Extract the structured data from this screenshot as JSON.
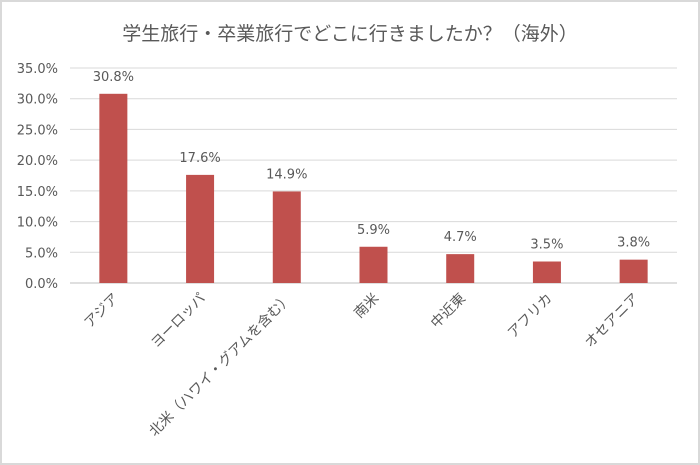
{
  "chart_data": {
    "type": "bar",
    "title": "学生旅行・卒業旅行でどこに行きましたか？（海外）",
    "categories": [
      "アジア",
      "ヨーロッパ",
      "北米（ハワイ・グアムを含む）",
      "南米",
      "中近東",
      "アフリカ",
      "オセアニア"
    ],
    "values": [
      30.8,
      17.6,
      14.9,
      5.9,
      4.7,
      3.5,
      3.8
    ],
    "data_labels": [
      "30.8%",
      "17.6%",
      "14.9%",
      "5.9%",
      "4.7%",
      "3.5%",
      "3.8%"
    ],
    "yticks": [
      "0.0%",
      "5.0%",
      "10.0%",
      "15.0%",
      "20.0%",
      "25.0%",
      "30.0%",
      "35.0%"
    ],
    "ylim": [
      0,
      35
    ],
    "grid": true,
    "bar_color": "#C0504D",
    "xlabel": "",
    "ylabel": ""
  }
}
